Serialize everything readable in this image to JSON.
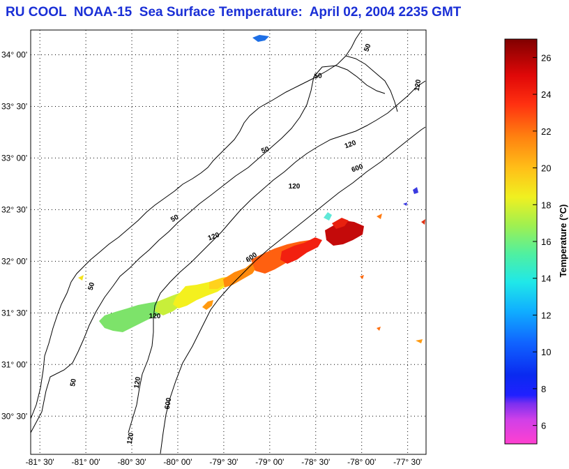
{
  "title": "RU COOL  NOAA-15  Sea Surface Temperature:  April 02, 2004 2235 GMT",
  "map": {
    "lat_ticks": [
      {
        "value": 34.0,
        "label": "34° 00'"
      },
      {
        "value": 33.5,
        "label": "33° 30'"
      },
      {
        "value": 33.0,
        "label": "33° 00'"
      },
      {
        "value": 32.5,
        "label": "32° 30'"
      },
      {
        "value": 32.0,
        "label": "32° 00'"
      },
      {
        "value": 31.5,
        "label": "31° 30'"
      },
      {
        "value": 31.0,
        "label": "31° 00'"
      },
      {
        "value": 30.5,
        "label": "30° 30'"
      }
    ],
    "lon_ticks": [
      {
        "value": -81.5,
        "label": "-81° 30'"
      },
      {
        "value": -81.0,
        "label": "-81° 00'"
      },
      {
        "value": -80.5,
        "label": "-80° 30'"
      },
      {
        "value": -80.0,
        "label": "-80° 00'"
      },
      {
        "value": -79.5,
        "label": "-79° 30'"
      },
      {
        "value": -79.0,
        "label": "-79° 00'"
      },
      {
        "value": -78.5,
        "label": "-78° 30'"
      },
      {
        "value": -78.0,
        "label": "-78° 00'"
      },
      {
        "value": -77.5,
        "label": "-77° 30'"
      }
    ],
    "lat_range": [
      30.13,
      34.24
    ],
    "lon_range": [
      -81.6,
      -77.3
    ],
    "grid": true,
    "isobath_labels": [
      "50",
      "50",
      "50",
      "50",
      "50",
      "50",
      "120",
      "120",
      "120",
      "120",
      "120",
      "120",
      "120",
      "600",
      "600",
      "600"
    ]
  },
  "colorbar": {
    "title": "Temperature (°C)",
    "min": 5,
    "max": 27,
    "ticks": [
      "6",
      "8",
      "10",
      "12",
      "14",
      "16",
      "18",
      "20",
      "22",
      "24",
      "26"
    ]
  }
}
